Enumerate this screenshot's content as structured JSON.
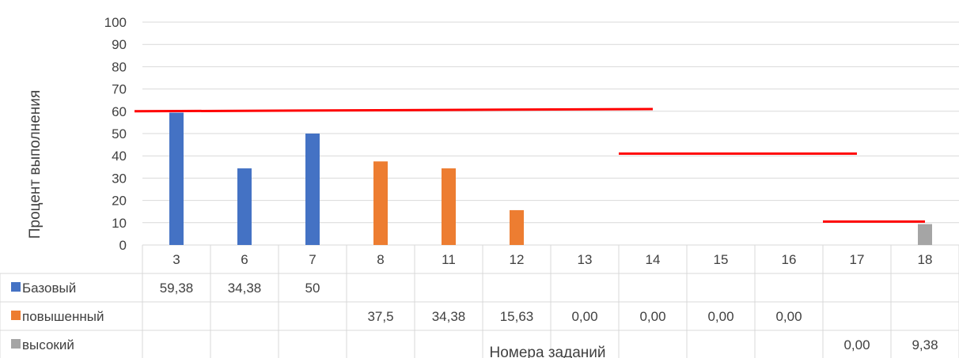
{
  "chart_data": {
    "type": "bar",
    "ylabel": "Процент выполнения",
    "xlabel": "Номера заданий",
    "ylim": [
      0,
      100
    ],
    "yticks": [
      "0",
      "10",
      "20",
      "30",
      "40",
      "50",
      "60",
      "70",
      "80",
      "90",
      "100"
    ],
    "grid": true,
    "categories": [
      "3",
      "6",
      "7",
      "8",
      "11",
      "12",
      "13",
      "14",
      "15",
      "16",
      "17",
      "18"
    ],
    "series": [
      {
        "name": "Базовый",
        "color": "#4472C4",
        "values": [
          59.38,
          34.38,
          50,
          null,
          null,
          null,
          null,
          null,
          null,
          null,
          null,
          null
        ],
        "labels": [
          "59,38",
          "34,38",
          "50",
          "",
          "",
          "",
          "",
          "",
          "",
          "",
          "",
          ""
        ]
      },
      {
        "name": "повышенный",
        "color": "#ED7D31",
        "values": [
          null,
          null,
          null,
          37.5,
          34.38,
          15.63,
          0,
          0,
          0,
          0,
          null,
          null
        ],
        "labels": [
          "",
          "",
          "",
          "37,5",
          "34,38",
          "15,63",
          "0,00",
          "0,00",
          "0,00",
          "0,00",
          "",
          ""
        ]
      },
      {
        "name": "высокий",
        "color": "#A5A5A5",
        "values": [
          null,
          null,
          null,
          null,
          null,
          null,
          null,
          null,
          null,
          null,
          0,
          9.38
        ],
        "labels": [
          "",
          "",
          "",
          "",
          "",
          "",
          "",
          "",
          "",
          "",
          "0,00",
          "9,38"
        ]
      }
    ],
    "threshold_color": "#FF0000",
    "thresholds": [
      {
        "from_category": "3",
        "to_category": "14",
        "value_start": 60,
        "value_end": 61
      },
      {
        "from_category": "14",
        "to_category": "17",
        "value_start": 41,
        "value_end": 41
      },
      {
        "from_category": "17",
        "to_category": "18",
        "value_start": 10.5,
        "value_end": 10.5
      }
    ]
  }
}
